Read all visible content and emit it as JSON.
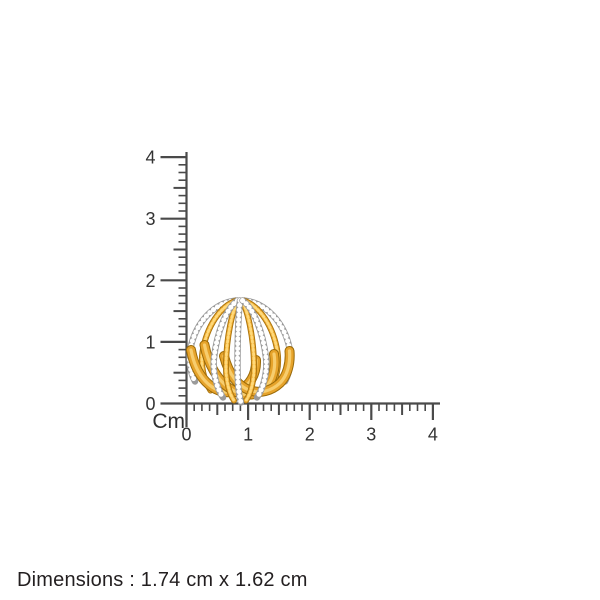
{
  "ruler": {
    "unit_label": "Cm",
    "x_tick_labels": [
      "0",
      "1",
      "2",
      "3",
      "4"
    ],
    "y_tick_labels": [
      "0",
      "1",
      "2",
      "3",
      "4"
    ],
    "line_color": "#4a4a4a",
    "label_color": "#333333"
  },
  "product": {
    "gold_color": "#e8a42e",
    "diamond_color": "#ffffff"
  },
  "caption": {
    "dimensions": "Dimensions : 1.74 cm x 1.62 cm",
    "color": "#231f20"
  }
}
